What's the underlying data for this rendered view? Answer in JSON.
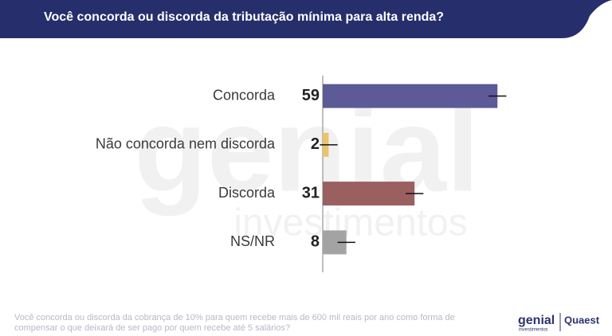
{
  "chart_data": {
    "type": "bar",
    "orientation": "horizontal",
    "title": "Você concorda ou discorda da tributação mínima para alta renda?",
    "categories": [
      "Concorda",
      "Não concorda nem discorda",
      "Discorda",
      "NS/NR"
    ],
    "values": [
      59,
      2,
      31,
      8
    ],
    "errors": [
      3,
      3,
      3,
      3
    ],
    "colors": [
      "#5d5a98",
      "#e9c46c",
      "#9a5f5f",
      "#a3a3a3"
    ],
    "xlim": [
      0,
      60
    ],
    "watermark": [
      "genial",
      "investimentos"
    ],
    "footnote": [
      "Você concorda ou discorda da cobrança de 10% para quem recebe mais de 600 mil reais por ano como forma de",
      "compensar o que deixará de ser pago por quem recebe até 5 salários?"
    ],
    "logos": [
      "genial",
      "investimentos",
      "Quaest"
    ]
  }
}
